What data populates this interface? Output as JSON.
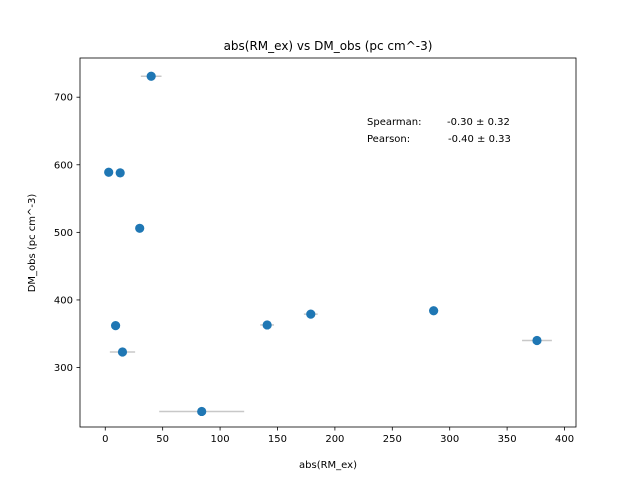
{
  "chart_data": {
    "type": "scatter",
    "title": "abs(RM_ex) vs DM_obs (pc cm^-3)",
    "xlabel": "abs(RM_ex)",
    "ylabel": "DM_obs (pc cm^-3)",
    "xlim": [
      -22,
      410
    ],
    "ylim": [
      212,
      758
    ],
    "xticks": [
      0,
      50,
      100,
      150,
      200,
      250,
      300,
      350,
      400
    ],
    "yticks": [
      300,
      400,
      500,
      600,
      700
    ],
    "xtick_labels": [
      "0",
      "50",
      "100",
      "150",
      "200",
      "250",
      "300",
      "350",
      "400"
    ],
    "ytick_labels": [
      "300",
      "400",
      "500",
      "600",
      "700"
    ],
    "grid": false,
    "points": [
      {
        "x": 40,
        "y": 731,
        "xerr": 9
      },
      {
        "x": 3,
        "y": 589,
        "xerr": 0
      },
      {
        "x": 13,
        "y": 588,
        "xerr": 3
      },
      {
        "x": 30,
        "y": 506,
        "xerr": 1
      },
      {
        "x": 9,
        "y": 362,
        "xerr": 2
      },
      {
        "x": 15,
        "y": 323,
        "xerr": 11
      },
      {
        "x": 84,
        "y": 235,
        "xerr": 37
      },
      {
        "x": 141,
        "y": 363,
        "xerr": 6
      },
      {
        "x": 179,
        "y": 379,
        "xerr": 6
      },
      {
        "x": 286,
        "y": 384,
        "xerr": 4
      },
      {
        "x": 376,
        "y": 340,
        "xerr": 13
      }
    ],
    "marker_color": "#1f77b4",
    "errorbar_color": "#c8c8c8",
    "annotations": [
      {
        "label": "Spearman:",
        "value": "-0.30 ± 0.32"
      },
      {
        "label": "Pearson:",
        "value": "-0.40 ± 0.33"
      }
    ],
    "annotation_placement": "top-right"
  }
}
